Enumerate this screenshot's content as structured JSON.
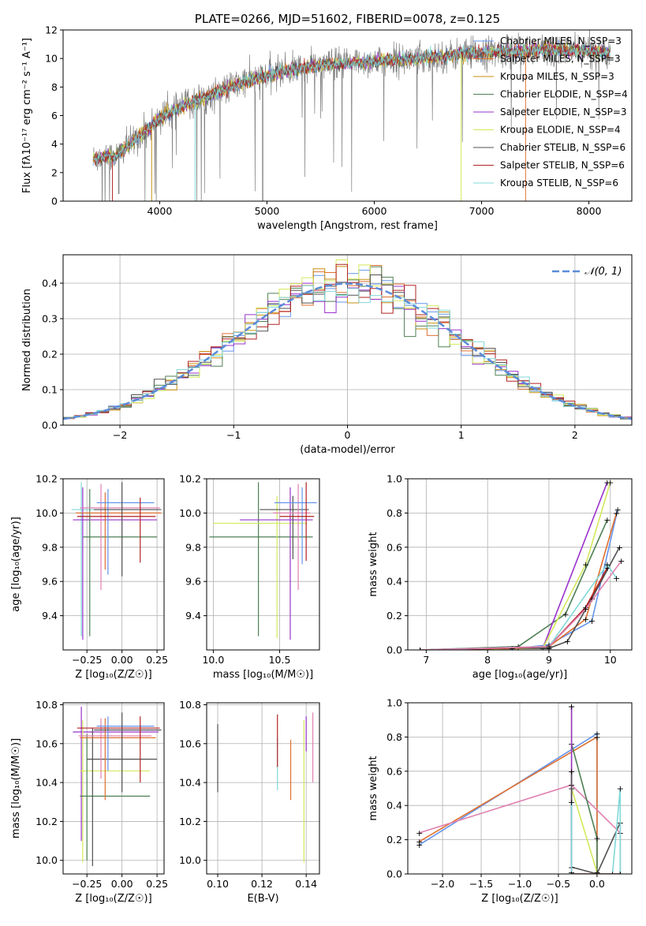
{
  "colors": {
    "chabrier_miles": "#6495ed",
    "salpeter_miles": "#e07030",
    "kroupa_miles": "#c89010",
    "chabrier_elodie": "#4e8054",
    "salpeter_elodie": "#9932cc",
    "kroupa_elodie": "#d4e85a",
    "chabrier_stelib": "#505050",
    "salpeter_stelib": "#b22222",
    "kroupa_stelib": "#80d8d8",
    "pink": "#e080b0",
    "observed": "#808080",
    "normal": "#5b8bd9"
  },
  "chart_data": [
    {
      "id": "spectrum",
      "type": "line",
      "title": "PLATE=0266, MJD=51602, FIBERID=0078, z=0.125",
      "xlabel": "wavelength [Angstrom, rest frame]",
      "ylabel": "Flux [fλ10⁻¹⁷ erg cm⁻² s⁻¹ A⁻¹]",
      "xlim": [
        3100,
        8400
      ],
      "ylim": [
        0,
        12
      ],
      "xticks": [
        "4000",
        "5000",
        "6000",
        "7000",
        "8000"
      ],
      "yticks": [
        "0",
        "2",
        "4",
        "6",
        "8",
        "10",
        "12"
      ],
      "legend": [
        "Chabrier MILES, N_SSP=3",
        "Salpeter MILES, N_SSP=3",
        "Kroupa MILES, N_SSP=3",
        "Chabrier ELODIE, N_SSP=4",
        "Salpeter ELODIE, N_SSP=3",
        "Kroupa ELODIE, N_SSP=4",
        "Chabrier STELIB, N_SSP=6",
        "Salpeter STELIB, N_SSP=6",
        "Kroupa STELIB, N_SSP=6"
      ],
      "continuum": {
        "x": [
          3400,
          3600,
          3800,
          4000,
          4200,
          4400,
          4600,
          4800,
          5000,
          5200,
          5400,
          5600,
          5800,
          6000,
          6200,
          6400,
          6600,
          6800,
          7000,
          7200,
          7400,
          7600,
          7800,
          8000,
          8200
        ],
        "y": [
          3.0,
          3.2,
          4.5,
          5.8,
          6.6,
          7.2,
          7.8,
          8.4,
          8.8,
          9.2,
          9.4,
          9.6,
          9.7,
          9.8,
          9.9,
          10.0,
          10.1,
          10.3,
          10.4,
          10.5,
          10.5,
          10.6,
          10.6,
          10.5,
          10.4
        ]
      }
    },
    {
      "id": "residuals",
      "type": "bar",
      "xlabel": "(data-model)/error",
      "ylabel": "Normed distribution",
      "xlim": [
        -2.5,
        2.5
      ],
      "ylim": [
        0,
        0.48
      ],
      "xticks": [
        "−2",
        "−1",
        "0",
        "1",
        "2"
      ],
      "yticks": [
        "0.0",
        "0.1",
        "0.2",
        "0.3",
        "0.4"
      ],
      "legend": [
        "𝒩(0, 1)"
      ],
      "bin_width": 0.1
    },
    {
      "id": "age_vs_Z",
      "type": "scatter",
      "xlabel": "Z [log₁₀(Z/Z☉)]",
      "ylabel": "age  [log₁₀(age/yr)]",
      "xlim": [
        -0.42,
        0.3
      ],
      "ylim": [
        9.2,
        10.2
      ],
      "xticks": [
        "−0.25",
        "0.00",
        "0.25"
      ],
      "yticks": [
        "9.4",
        "9.6",
        "9.8",
        "10.0",
        "10.2"
      ]
    },
    {
      "id": "age_vs_mass",
      "type": "scatter",
      "xlabel": "mass [log₁₀(M/M☉)]",
      "ylabel": "",
      "xlim": [
        9.95,
        10.8
      ],
      "ylim": [
        9.2,
        10.2
      ],
      "xticks": [
        "10.0",
        "10.5"
      ],
      "yticks": [
        "9.4",
        "9.6",
        "9.8",
        "10.0",
        "10.2"
      ]
    },
    {
      "id": "weight_vs_age",
      "type": "line",
      "xlabel": "age  [log₁₀(age/yr)]",
      "ylabel": "mass weight",
      "xlim": [
        6.7,
        10.35
      ],
      "ylim": [
        0,
        1
      ],
      "xticks": [
        "7",
        "8",
        "9",
        "10"
      ],
      "yticks": [
        "0.0",
        "0.2",
        "0.4",
        "0.6",
        "0.8",
        "1.0"
      ]
    },
    {
      "id": "mass_vs_Z",
      "type": "scatter",
      "xlabel": "Z [log₁₀(Z/Z☉)]",
      "ylabel": "mass [log₁₀(M/M☉)]",
      "xlim": [
        -0.42,
        0.3
      ],
      "ylim": [
        9.93,
        10.81
      ],
      "xticks": [
        "−0.25",
        "0.00",
        "0.25"
      ],
      "yticks": [
        "10.0",
        "10.2",
        "10.4",
        "10.6",
        "10.8"
      ]
    },
    {
      "id": "mass_vs_ebv",
      "type": "scatter",
      "xlabel": "E(B-V)",
      "ylabel": "",
      "xlim": [
        0.095,
        0.146
      ],
      "ylim": [
        9.93,
        10.81
      ],
      "xticks": [
        "0.10",
        "0.12",
        "0.14"
      ],
      "yticks": [
        "10.0",
        "10.2",
        "10.4",
        "10.6",
        "10.8"
      ]
    },
    {
      "id": "weight_vs_Z",
      "type": "line",
      "xlabel": "Z [log₁₀(Z/Z☉)]",
      "ylabel": "mass weight",
      "xlim": [
        -2.45,
        0.45
      ],
      "ylim": [
        0,
        1
      ],
      "xticks": [
        "−2.0",
        "−1.5",
        "−1.0",
        "−0.5",
        "0.0"
      ],
      "yticks": [
        "0.0",
        "0.2",
        "0.4",
        "0.6",
        "0.8",
        "1.0"
      ]
    }
  ]
}
